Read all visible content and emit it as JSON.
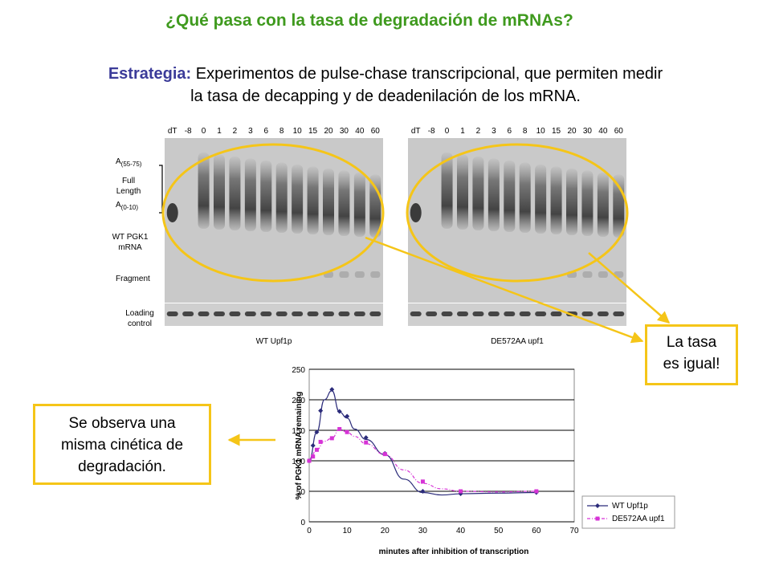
{
  "header": {
    "title": "¿Qué pasa con la tasa de degradación de mRNAs?",
    "strategy_lead": "Estrategia:",
    "strategy_line1": " Experimentos de pulse-chase transcripcional, que permiten medir",
    "strategy_line2": "la tasa de decapping y de deadenilación de los mRNA."
  },
  "gel": {
    "lanes": [
      "dT",
      "-8",
      "0",
      "1",
      "2",
      "3",
      "6",
      "8",
      "10",
      "15",
      "20",
      "30",
      "40",
      "60"
    ],
    "label_a_high": "A",
    "label_a_high_sub": "(55-75)",
    "label_full": "Full",
    "label_length": "Length",
    "label_a_low": "A",
    "label_a_low_sub": "(0-10)",
    "label_wt1": "WT PGK1",
    "label_wt2": "mRNA",
    "label_fragment": "Fragment",
    "label_loading1": "Loading",
    "label_loading2": "control",
    "panel_left_caption": "WT Upf1p",
    "panel_right_caption": "DE572AA upf1"
  },
  "callouts": {
    "right_line1": "La tasa",
    "right_line2": "es igual!",
    "left_line1": "Se observa una",
    "left_line2": "misma cinética de",
    "left_line3": "degradación."
  },
  "colors": {
    "title": "#3f9a1e",
    "strategy_lead": "#3b3b99",
    "highlight": "#f5c518",
    "series_wt": "#2b2b7a",
    "series_mut": "#d633d6"
  },
  "chart_data": {
    "type": "line",
    "xlabel": "minutes after inhibition of transcription",
    "ylabel": "% of PGK1 mRNA remaining",
    "xlim": [
      0,
      70
    ],
    "ylim": [
      0,
      250
    ],
    "xticks": [
      "0",
      "10",
      "20",
      "30",
      "40",
      "50",
      "60",
      "70"
    ],
    "yticks": [
      "0",
      "50",
      "100",
      "150",
      "200",
      "250"
    ],
    "grid": true,
    "legend_position": "bottom-right",
    "series": [
      {
        "name": "WT Upf1p",
        "x": [
          0,
          1,
          2,
          3,
          6,
          8,
          10,
          15,
          20,
          30,
          40,
          60
        ],
        "y": [
          100,
          125,
          147,
          182,
          217,
          181,
          173,
          138,
          112,
          50,
          46,
          48
        ],
        "curve_x": [
          0,
          2,
          4,
          6,
          8,
          10,
          12,
          15,
          20,
          25,
          30,
          35,
          40,
          50,
          60
        ],
        "curve_y": [
          100,
          147,
          200,
          215,
          180,
          170,
          152,
          135,
          110,
          70,
          48,
          44,
          46,
          47,
          48
        ]
      },
      {
        "name": "DE572AA upf1",
        "x": [
          0,
          1,
          2,
          3,
          6,
          8,
          10,
          15,
          20,
          30,
          40,
          60
        ],
        "y": [
          100,
          107,
          118,
          131,
          137,
          152,
          147,
          130,
          111,
          66,
          50,
          50
        ],
        "curve_x": [
          0,
          2,
          4,
          6,
          8,
          10,
          12,
          15,
          20,
          25,
          30,
          35,
          40,
          50,
          60
        ],
        "curve_y": [
          100,
          118,
          132,
          137,
          152,
          147,
          140,
          128,
          110,
          85,
          63,
          54,
          50,
          49,
          50
        ]
      }
    ]
  }
}
